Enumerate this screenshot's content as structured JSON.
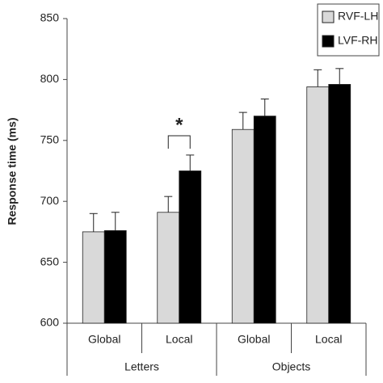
{
  "chart_data": {
    "type": "bar",
    "y_label": "Response time (ms)",
    "categories": [
      "Global",
      "Local",
      "Global",
      "Local"
    ],
    "groups": [
      "Letters",
      "Objects"
    ],
    "series": [
      {
        "name": "RVF-LH",
        "color": "#d9d9d9",
        "values": [
          675,
          691,
          759,
          794
        ],
        "errors": [
          15,
          13,
          14,
          14
        ]
      },
      {
        "name": "LVF-RH",
        "color": "#000000",
        "values": [
          676,
          725,
          770,
          796
        ],
        "errors": [
          15,
          13,
          14,
          13
        ]
      }
    ],
    "annotation": "*",
    "ylim": [
      600,
      850
    ],
    "yticks": [
      600,
      650,
      700,
      750,
      800,
      850
    ],
    "grid": false,
    "legend": "upper right"
  }
}
